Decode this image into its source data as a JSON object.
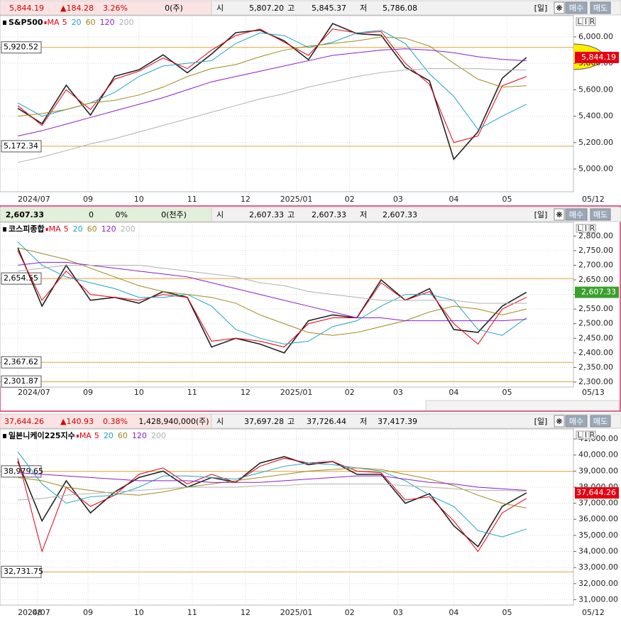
{
  "scale_buttons": [
    "L",
    "I",
    "R"
  ],
  "chart_data": [
    {
      "type": "line",
      "title": "S&P500",
      "ma_label": "MA",
      "end_date": "05/12",
      "header_color": "#d40000",
      "tag_color": "#e60012",
      "header": {
        "price": "5,844.19",
        "change": "▲184.28",
        "rate": "3.26%",
        "volume": "0(주)",
        "open_label": "시",
        "open": "5,807.20",
        "high_label": "고",
        "high": "5,845.37",
        "low_label": "저",
        "low": "5,786.08",
        "period": "[일]",
        "settings": "❋",
        "buy": "매수",
        "sell": "매도"
      },
      "xlim": [
        -0.5,
        21.3
      ],
      "xticks": [
        {
          "value": 0,
          "label": "2024/07"
        },
        {
          "value": 2.9,
          "label": "09"
        },
        {
          "value": 5.0,
          "label": "10"
        },
        {
          "value": 7.2,
          "label": "11"
        },
        {
          "value": 9.4,
          "label": "12"
        },
        {
          "value": 11.5,
          "label": "2025/01"
        },
        {
          "value": 13.7,
          "label": "02"
        },
        {
          "value": 15.7,
          "label": "03"
        },
        {
          "value": 18.0,
          "label": "04"
        },
        {
          "value": 20.2,
          "label": "05"
        }
      ],
      "ylim": [
        4828,
        6161
      ],
      "yticks": [
        {
          "value": 5000,
          "label": "5,000.00"
        },
        {
          "value": 5200,
          "label": "5,200.00"
        },
        {
          "value": 5400,
          "label": "5,400.00"
        },
        {
          "value": 5600,
          "label": "5,600.00"
        },
        {
          "value": 5800,
          "label": "5,800.00"
        },
        {
          "value": 6000,
          "label": "6,000.00"
        }
      ],
      "hlines": [
        {
          "value": 5920.52,
          "label": "5,920.52"
        },
        {
          "value": 5172.34,
          "label": "5,172.34"
        }
      ],
      "series": [
        {
          "name": "S&P500",
          "color": "#222222",
          "values": [
            5460,
            5344,
            5634,
            5408,
            5702,
            5751,
            5864,
            5728,
            5870,
            6032,
            6051,
            5970,
            5827,
            6101,
            6025,
            6013,
            5770,
            5667,
            5074,
            5282,
            5687,
            5844.19
          ]
        },
        {
          "name": "5",
          "color": "#e60012",
          "values": [
            5480,
            5330,
            5600,
            5450,
            5680,
            5740,
            5840,
            5760,
            5900,
            6010,
            6060,
            5960,
            5860,
            6060,
            6030,
            6040,
            5800,
            5640,
            5200,
            5250,
            5630,
            5700
          ]
        },
        {
          "name": "20",
          "color": "#1fa3c9",
          "values": [
            5500,
            5400,
            5450,
            5500,
            5580,
            5700,
            5780,
            5800,
            5820,
            5950,
            6030,
            6010,
            5920,
            5960,
            6030,
            6050,
            5950,
            5720,
            5550,
            5300,
            5400,
            5490
          ]
        },
        {
          "name": "60",
          "color": "#a08a1e",
          "values": [
            5400,
            5420,
            5450,
            5500,
            5520,
            5560,
            5620,
            5700,
            5760,
            5790,
            5850,
            5900,
            5930,
            5950,
            5970,
            6000,
            5990,
            5930,
            5800,
            5680,
            5620,
            5630
          ]
        },
        {
          "name": "120",
          "color": "#8e1ec8",
          "values": [
            5250,
            5290,
            5340,
            5390,
            5440,
            5490,
            5540,
            5600,
            5660,
            5700,
            5740,
            5780,
            5820,
            5860,
            5880,
            5900,
            5910,
            5900,
            5880,
            5850,
            5830,
            5820
          ]
        },
        {
          "name": "200",
          "color": "#b0b0b0",
          "values": [
            5050,
            5090,
            5140,
            5190,
            5230,
            5280,
            5330,
            5380,
            5430,
            5480,
            5530,
            5570,
            5620,
            5660,
            5700,
            5730,
            5750,
            5760,
            5760,
            5760,
            5750,
            5750
          ]
        }
      ]
    },
    {
      "type": "line",
      "title": "코스피종합",
      "ma_label": "MA",
      "end_date": "05/13",
      "header_color": "#000000",
      "tag_color": "#3aa02c",
      "header": {
        "price": "2,607.33",
        "change": "0",
        "rate": "0%",
        "volume": "0(천주)",
        "open_label": "시",
        "open": "2,607.33",
        "high_label": "고",
        "high": "2,607.33",
        "low_label": "저",
        "low": "2,607.33",
        "period": "[일]",
        "settings": "❋",
        "buy": "매수",
        "sell": "매도"
      },
      "xlim": [
        -0.5,
        21.3
      ],
      "xticks": [
        {
          "value": 0,
          "label": "2024/07"
        },
        {
          "value": 2.9,
          "label": "09"
        },
        {
          "value": 5.0,
          "label": "10"
        },
        {
          "value": 7.2,
          "label": "11"
        },
        {
          "value": 9.4,
          "label": "12"
        },
        {
          "value": 11.5,
          "label": "2025/01"
        },
        {
          "value": 13.7,
          "label": "02"
        },
        {
          "value": 15.7,
          "label": "03"
        },
        {
          "value": 18.0,
          "label": "04"
        },
        {
          "value": 20.2,
          "label": "05"
        }
      ],
      "ylim": [
        2283,
        2847
      ],
      "yticks": [
        {
          "value": 2300,
          "label": "2,300.00"
        },
        {
          "value": 2350,
          "label": "2,350.00"
        },
        {
          "value": 2400,
          "label": "2,400.00"
        },
        {
          "value": 2450,
          "label": "2,450.00"
        },
        {
          "value": 2500,
          "label": "2,500.00"
        },
        {
          "value": 2550,
          "label": "2,550.00"
        },
        {
          "value": 2600,
          "label": "2,600.00"
        },
        {
          "value": 2650,
          "label": "2,650.00"
        },
        {
          "value": 2700,
          "label": "2,700.00"
        },
        {
          "value": 2750,
          "label": "2,750.00"
        },
        {
          "value": 2800,
          "label": "2,800.00"
        }
      ],
      "hlines": [
        {
          "value": 2654.55,
          "label": "2,654.55"
        },
        {
          "value": 2367.62,
          "label": "2,367.62"
        },
        {
          "value": 2301.87,
          "label": "2,301.87"
        }
      ],
      "series": [
        {
          "name": "코스피종합",
          "color": "#222222",
          "values": [
            2760,
            2560,
            2700,
            2580,
            2590,
            2570,
            2610,
            2590,
            2420,
            2450,
            2430,
            2400,
            2510,
            2530,
            2520,
            2650,
            2580,
            2620,
            2480,
            2470,
            2560,
            2607.33
          ]
        },
        {
          "name": "5",
          "color": "#e60012",
          "values": [
            2750,
            2580,
            2680,
            2600,
            2590,
            2580,
            2600,
            2590,
            2440,
            2450,
            2440,
            2420,
            2500,
            2520,
            2520,
            2640,
            2580,
            2610,
            2500,
            2430,
            2550,
            2590
          ]
        },
        {
          "name": "20",
          "color": "#1fa3c9",
          "values": [
            2780,
            2700,
            2660,
            2640,
            2620,
            2590,
            2590,
            2600,
            2560,
            2480,
            2450,
            2430,
            2440,
            2490,
            2510,
            2560,
            2600,
            2600,
            2580,
            2480,
            2460,
            2520
          ]
        },
        {
          "name": "60",
          "color": "#a08a1e",
          "values": [
            2760,
            2740,
            2720,
            2690,
            2660,
            2630,
            2610,
            2600,
            2590,
            2570,
            2530,
            2500,
            2470,
            2460,
            2470,
            2490,
            2510,
            2540,
            2560,
            2550,
            2530,
            2550
          ]
        },
        {
          "name": "120",
          "color": "#8e1ec8",
          "values": [
            2700,
            2710,
            2710,
            2700,
            2690,
            2680,
            2670,
            2660,
            2640,
            2620,
            2600,
            2580,
            2560,
            2540,
            2520,
            2520,
            2510,
            2510,
            2510,
            2510,
            2510,
            2515
          ]
        },
        {
          "name": "200",
          "color": "#b0b0b0",
          "values": [
            2680,
            2690,
            2700,
            2700,
            2700,
            2700,
            2690,
            2680,
            2670,
            2660,
            2640,
            2630,
            2610,
            2600,
            2590,
            2580,
            2580,
            2580,
            2580,
            2570,
            2570,
            2570
          ]
        }
      ]
    },
    {
      "type": "line",
      "title": "일본니케이225지수",
      "ma_label": "MA",
      "end_date": "05/12",
      "header_color": "#d40000",
      "tag_color": "#e60012",
      "header": {
        "price": "37,644.26",
        "change": "▲140.93",
        "rate": "0.38%",
        "volume": "1,428,940,000(주)",
        "open_label": "시",
        "open": "37,697.28",
        "high_label": "고",
        "high": "37,726.44",
        "low_label": "저",
        "low": "37,417.39",
        "period": "[일]",
        "settings": "❋",
        "buy": "매수",
        "sell": "매도"
      },
      "xlim": [
        -0.5,
        21.3
      ],
      "xticks": [
        {
          "value": 0,
          "label": "2024/07"
        },
        {
          "value": 0.8,
          "label": "08"
        },
        {
          "value": 2.9,
          "label": "09"
        },
        {
          "value": 5.0,
          "label": "10"
        },
        {
          "value": 7.2,
          "label": "11"
        },
        {
          "value": 9.4,
          "label": "12"
        },
        {
          "value": 11.5,
          "label": "2025/01"
        },
        {
          "value": 13.7,
          "label": "02"
        },
        {
          "value": 15.7,
          "label": "03"
        },
        {
          "value": 18.0,
          "label": "04"
        },
        {
          "value": 20.2,
          "label": "05"
        }
      ],
      "ylim": [
        30665,
        41622
      ],
      "yticks": [
        {
          "value": 31000,
          "label": "31,000.00"
        },
        {
          "value": 32000,
          "label": "32,000.00"
        },
        {
          "value": 33000,
          "label": "33,000.00"
        },
        {
          "value": 34000,
          "label": "34,000.00"
        },
        {
          "value": 35000,
          "label": "35,000.00"
        },
        {
          "value": 36000,
          "label": "36,000.00"
        },
        {
          "value": 37000,
          "label": "37,000.00"
        },
        {
          "value": 38000,
          "label": "38,000.00"
        },
        {
          "value": 39000,
          "label": "39,000.00"
        },
        {
          "value": 40000,
          "label": "40,000.00"
        },
        {
          "value": 41000,
          "label": "41,000.00"
        }
      ],
      "hlines": [
        {
          "value": 38979.65,
          "label": "38,979.65"
        },
        {
          "value": 32731.75,
          "label": "32,731.75"
        }
      ],
      "series": [
        {
          "name": "일본니케이225지수",
          "color": "#222222",
          "values": [
            39600,
            35900,
            38400,
            36400,
            37700,
            38600,
            39000,
            38000,
            38600,
            38300,
            39500,
            39900,
            39400,
            39600,
            38800,
            38800,
            37000,
            37600,
            35600,
            34300,
            36800,
            37644.26
          ]
        },
        {
          "name": "5",
          "color": "#e60012",
          "values": [
            39800,
            34000,
            38000,
            36800,
            37500,
            38800,
            39200,
            38200,
            38800,
            38300,
            39300,
            39800,
            39500,
            39600,
            39000,
            38900,
            37200,
            37400,
            35900,
            34000,
            36400,
            37300
          ]
        },
        {
          "name": "20",
          "color": "#1fa3c9",
          "values": [
            40200,
            38200,
            37000,
            37400,
            37500,
            38000,
            38700,
            38700,
            38600,
            38500,
            38900,
            39300,
            39500,
            39400,
            39200,
            39000,
            38400,
            37500,
            36800,
            35300,
            34900,
            35400
          ]
        },
        {
          "name": "60",
          "color": "#a08a1e",
          "values": [
            38600,
            38400,
            38000,
            37800,
            37600,
            37500,
            37700,
            38000,
            38200,
            38400,
            38600,
            38800,
            39000,
            39100,
            39200,
            39100,
            38800,
            38500,
            38100,
            37500,
            37000,
            36700
          ]
        },
        {
          "name": "120",
          "color": "#8e1ec8",
          "values": [
            38900,
            38800,
            38700,
            38600,
            38500,
            38400,
            38400,
            38400,
            38300,
            38300,
            38300,
            38400,
            38500,
            38600,
            38700,
            38700,
            38500,
            38300,
            38200,
            38000,
            37900,
            37800
          ]
        },
        {
          "name": "200",
          "color": "#b0b0b0",
          "values": [
            37200,
            37300,
            37500,
            37600,
            37700,
            37800,
            37900,
            38000,
            38000,
            38000,
            38100,
            38100,
            38200,
            38200,
            38200,
            38200,
            38100,
            38000,
            37900,
            37800,
            37800,
            37750
          ]
        }
      ]
    }
  ]
}
